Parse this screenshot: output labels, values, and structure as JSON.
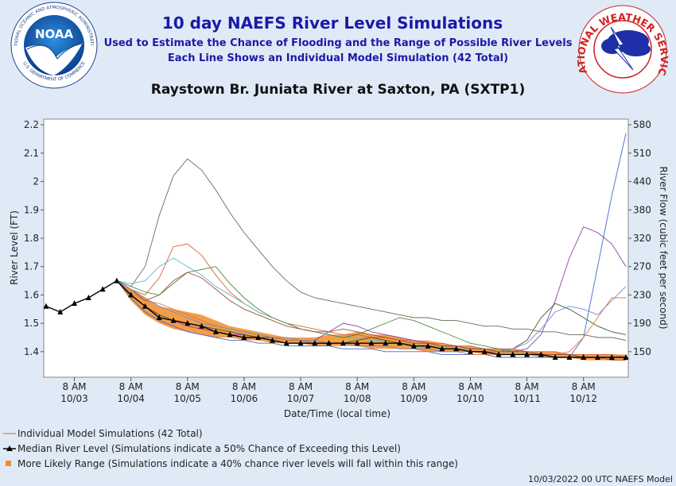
{
  "header": {
    "title": "10 day NAEFS River Level Simulations",
    "subtitle_1": "Used to Estimate the Chance of Flooding and the Range of Possible River Levels",
    "subtitle_2": "Each Line Shows an Individual Model Simulation (42 Total)",
    "noaa_logo": {
      "name": "NOAA",
      "top_ring": "NATIONAL OCEANIC AND ATMOSPHERIC ADMINISTRATION",
      "bottom_ring": "U.S. DEPARTMENT OF COMMERCE"
    },
    "nws_logo": {
      "ring": "NATIONAL WEATHER SERVICE"
    }
  },
  "chart_data": {
    "type": "line",
    "title": "Raystown Br. Juniata River at Saxton, PA (SXTP1)",
    "x_label": "Date/Time (local time)",
    "y_label": "River Level (FT)",
    "y2_label": "River Flow (cubic feet per second)",
    "x": [
      -12,
      -6,
      0,
      6,
      12,
      18,
      24,
      30,
      36,
      42,
      48,
      54,
      60,
      66,
      72,
      78,
      84,
      90,
      96,
      102,
      108,
      114,
      120,
      126,
      132,
      138,
      144,
      150,
      156,
      162,
      168,
      174,
      180,
      186,
      192,
      198,
      204,
      210,
      216,
      222,
      228,
      234
    ],
    "xlim": [
      -13,
      235
    ],
    "xticks": [
      {
        "value": 0,
        "label": "8 AM\n10/03"
      },
      {
        "value": 24,
        "label": "8 AM\n10/04"
      },
      {
        "value": 48,
        "label": "8 AM\n10/05"
      },
      {
        "value": 72,
        "label": "8 AM\n10/06"
      },
      {
        "value": 96,
        "label": "8 AM\n10/07"
      },
      {
        "value": 120,
        "label": "8 AM\n10/08"
      },
      {
        "value": 144,
        "label": "8 AM\n10/09"
      },
      {
        "value": 168,
        "label": "8 AM\n10/10"
      },
      {
        "value": 192,
        "label": "8 AM\n10/11"
      },
      {
        "value": 216,
        "label": "8 AM\n10/12"
      }
    ],
    "ylim": [
      1.31,
      2.22
    ],
    "yticks": [
      2.2,
      2.1,
      2.0,
      1.9,
      1.8,
      1.7,
      1.6,
      1.5,
      1.4
    ],
    "y2ticks": [
      580,
      510,
      440,
      380,
      320,
      270,
      230,
      190,
      150
    ],
    "range": {
      "name": "More Likely Range (Simulations indicate a 40% chance river levels will fall within this range)",
      "color": "#f28c28",
      "upper": [
        null,
        null,
        null,
        null,
        null,
        1.65,
        1.62,
        1.59,
        1.56,
        1.55,
        1.54,
        1.53,
        1.51,
        1.49,
        1.48,
        1.47,
        1.46,
        1.45,
        1.45,
        1.45,
        1.46,
        1.46,
        1.47,
        1.46,
        1.46,
        1.45,
        1.44,
        1.44,
        1.43,
        1.42,
        1.42,
        1.41,
        1.41,
        1.41,
        1.4,
        1.4,
        1.4,
        1.39,
        1.39,
        1.39,
        1.39,
        1.39
      ],
      "lower": [
        null,
        null,
        null,
        null,
        null,
        1.65,
        1.58,
        1.53,
        1.5,
        1.48,
        1.47,
        1.46,
        1.45,
        1.45,
        1.44,
        1.44,
        1.43,
        1.43,
        1.43,
        1.42,
        1.42,
        1.42,
        1.42,
        1.41,
        1.41,
        1.41,
        1.41,
        1.4,
        1.4,
        1.4,
        1.4,
        1.39,
        1.39,
        1.39,
        1.39,
        1.38,
        1.38,
        1.38,
        1.37,
        1.37,
        1.37,
        1.37
      ]
    },
    "simulations": {
      "name": "Individual Model Simulations (42 Total)",
      "lines": [
        {
          "color": "#6b6b55",
          "values": [
            null,
            null,
            null,
            null,
            null,
            1.65,
            1.63,
            1.7,
            1.88,
            2.02,
            2.08,
            2.04,
            1.97,
            1.89,
            1.82,
            1.76,
            1.7,
            1.65,
            1.61,
            1.59,
            1.58,
            1.57,
            1.56,
            1.55,
            1.54,
            1.53,
            1.52,
            1.52,
            1.51,
            1.51,
            1.5,
            1.49,
            1.49,
            1.48,
            1.48,
            1.47,
            1.47,
            1.46,
            1.46,
            1.45,
            1.45,
            1.44
          ]
        },
        {
          "color": "#d9603a",
          "values": [
            null,
            null,
            null,
            null,
            null,
            1.65,
            1.62,
            1.6,
            1.66,
            1.77,
            1.78,
            1.74,
            1.67,
            1.61,
            1.57,
            1.54,
            1.52,
            1.5,
            1.49,
            1.48,
            1.47,
            1.46,
            1.46,
            1.45,
            1.45,
            1.44,
            1.44,
            1.43,
            1.43,
            1.42,
            1.42,
            1.41,
            1.41,
            1.41,
            1.4,
            1.4,
            1.4,
            1.39,
            1.39,
            1.39,
            1.39,
            1.38
          ]
        },
        {
          "color": "#5bb8c9",
          "values": [
            null,
            null,
            null,
            null,
            null,
            1.65,
            1.64,
            1.65,
            1.7,
            1.73,
            1.7,
            1.67,
            1.63,
            1.6,
            1.57,
            1.54,
            1.52,
            1.5,
            1.48,
            1.47,
            1.46,
            1.45,
            1.45,
            1.44,
            1.44,
            1.43,
            1.43,
            1.42,
            1.42,
            1.41,
            1.41,
            1.41,
            1.4,
            1.4,
            1.4,
            1.39,
            1.39,
            1.39,
            1.38,
            1.38,
            1.38,
            1.38
          ]
        },
        {
          "color": "#4a8a3a",
          "values": [
            null,
            null,
            null,
            null,
            null,
            1.65,
            1.63,
            1.61,
            1.6,
            1.64,
            1.68,
            1.69,
            1.7,
            1.64,
            1.59,
            1.55,
            1.52,
            1.5,
            1.48,
            1.47,
            1.46,
            1.45,
            1.46,
            1.48,
            1.5,
            1.52,
            1.51,
            1.49,
            1.47,
            1.45,
            1.43,
            1.42,
            1.41,
            1.4,
            1.4,
            1.39,
            1.39,
            1.39,
            1.38,
            1.38,
            1.38,
            1.38
          ]
        },
        {
          "color": "#8e3fa8",
          "values": [
            null,
            null,
            null,
            null,
            null,
            1.65,
            1.6,
            1.56,
            1.53,
            1.51,
            1.49,
            1.48,
            1.47,
            1.46,
            1.46,
            1.45,
            1.45,
            1.44,
            1.44,
            1.44,
            1.47,
            1.5,
            1.49,
            1.47,
            1.46,
            1.45,
            1.44,
            1.43,
            1.42,
            1.42,
            1.41,
            1.41,
            1.4,
            1.4,
            1.41,
            1.46,
            1.58,
            1.73,
            1.84,
            1.82,
            1.78,
            1.7
          ]
        },
        {
          "color": "#4169c8",
          "values": [
            null,
            null,
            null,
            null,
            null,
            1.65,
            1.59,
            1.54,
            1.51,
            1.49,
            1.47,
            1.46,
            1.45,
            1.44,
            1.44,
            1.43,
            1.43,
            1.42,
            1.42,
            1.42,
            1.42,
            1.41,
            1.41,
            1.41,
            1.4,
            1.4,
            1.4,
            1.4,
            1.39,
            1.39,
            1.39,
            1.39,
            1.38,
            1.38,
            1.38,
            1.38,
            1.38,
            1.38,
            1.45,
            1.7,
            1.95,
            2.17
          ]
        },
        {
          "color": "#3d5a2a",
          "values": [
            null,
            null,
            null,
            null,
            null,
            1.65,
            1.6,
            1.56,
            1.53,
            1.51,
            1.5,
            1.49,
            1.48,
            1.47,
            1.46,
            1.45,
            1.45,
            1.44,
            1.44,
            1.43,
            1.43,
            1.43,
            1.44,
            1.45,
            1.44,
            1.43,
            1.42,
            1.42,
            1.41,
            1.41,
            1.4,
            1.4,
            1.4,
            1.41,
            1.44,
            1.52,
            1.57,
            1.55,
            1.52,
            1.49,
            1.47,
            1.46
          ]
        },
        {
          "color": "#e07b3c",
          "values": [
            null,
            null,
            null,
            null,
            null,
            1.65,
            1.61,
            1.58,
            1.57,
            1.55,
            1.53,
            1.51,
            1.49,
            1.48,
            1.47,
            1.46,
            1.45,
            1.44,
            1.44,
            1.43,
            1.43,
            1.43,
            1.42,
            1.42,
            1.42,
            1.41,
            1.41,
            1.4,
            1.4,
            1.4,
            1.39,
            1.39,
            1.39,
            1.39,
            1.39,
            1.39,
            1.39,
            1.4,
            1.45,
            1.52,
            1.59,
            1.59
          ]
        },
        {
          "color": "#a0522d",
          "values": [
            null,
            null,
            null,
            null,
            null,
            1.65,
            1.62,
            1.58,
            1.6,
            1.65,
            1.68,
            1.66,
            1.62,
            1.58,
            1.55,
            1.53,
            1.51,
            1.49,
            1.48,
            1.47,
            1.47,
            1.48,
            1.47,
            1.46,
            1.45,
            1.44,
            1.43,
            1.43,
            1.42,
            1.42,
            1.41,
            1.41,
            1.4,
            1.4,
            1.4,
            1.39,
            1.39,
            1.39,
            1.38,
            1.38,
            1.37,
            1.37
          ]
        },
        {
          "color": "#6b8fd6",
          "values": [
            null,
            null,
            null,
            null,
            null,
            1.65,
            1.62,
            1.59,
            1.56,
            1.54,
            1.52,
            1.5,
            1.49,
            1.48,
            1.47,
            1.46,
            1.45,
            1.45,
            1.44,
            1.44,
            1.43,
            1.43,
            1.42,
            1.42,
            1.42,
            1.41,
            1.41,
            1.41,
            1.4,
            1.4,
            1.4,
            1.4,
            1.4,
            1.41,
            1.43,
            1.48,
            1.54,
            1.56,
            1.55,
            1.53,
            1.58,
            1.63
          ]
        }
      ]
    },
    "median": {
      "name": "Median River Level (Simulations indicate a 50% Chance of Exceeding this Level)",
      "color": "#000000",
      "values": [
        1.56,
        1.54,
        1.57,
        1.59,
        1.62,
        1.65,
        1.6,
        1.56,
        1.52,
        1.51,
        1.5,
        1.49,
        1.47,
        1.46,
        1.45,
        1.45,
        1.44,
        1.43,
        1.43,
        1.43,
        1.43,
        1.43,
        1.43,
        1.43,
        1.43,
        1.43,
        1.42,
        1.42,
        1.41,
        1.41,
        1.4,
        1.4,
        1.39,
        1.39,
        1.39,
        1.39,
        1.38,
        1.38,
        1.38,
        1.38,
        1.38,
        1.38
      ]
    }
  },
  "footer": {
    "note": "10/03/2022 00 UTC NAEFS Model"
  }
}
